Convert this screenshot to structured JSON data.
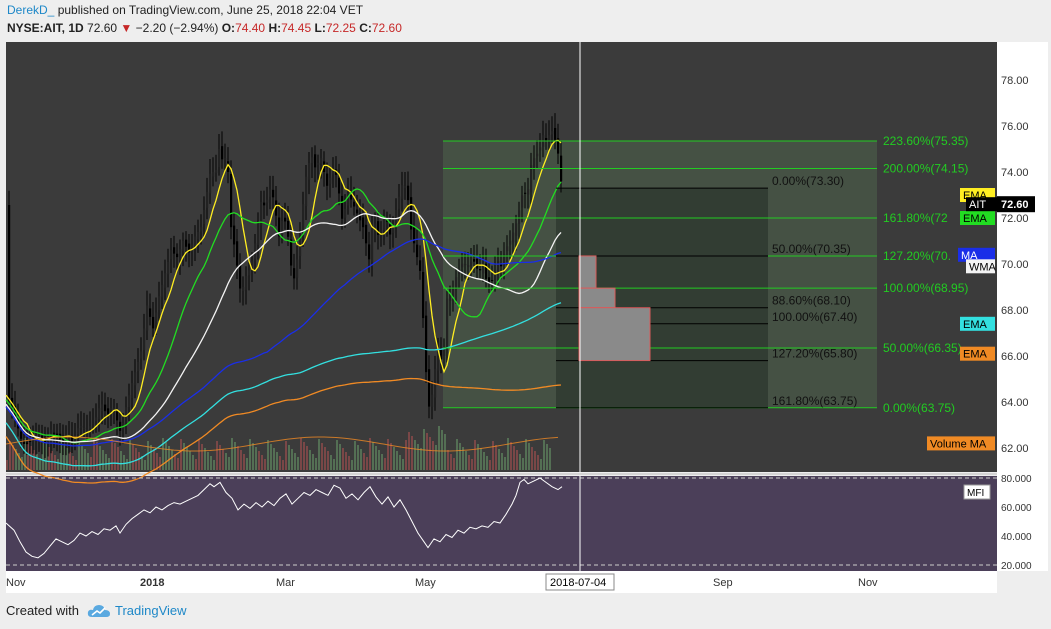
{
  "header": {
    "user": "DerekD_",
    "published": "published on TradingView.com, June 25, 2018 22:04 VET",
    "symbol": "NYSE:AIT, 1D",
    "last": "72.60",
    "change": "−2.20 (−2.94%)",
    "o_label": "O:",
    "o": "74.40",
    "h_label": "H:",
    "h": "74.45",
    "l_label": "L:",
    "l": "72.25",
    "c_label": "C:",
    "c": "72.60"
  },
  "footer": {
    "created": "Created with",
    "brand": "TradingView"
  },
  "colors": {
    "panel_bg": "#3b3b3b",
    "fib_zone": "#4a5a48",
    "green": "#22cc22",
    "ema_yellow": "#ffee22",
    "ema_green": "#22dd22",
    "ma_white": "#f4f4f4",
    "wma_blue": "#1a2ee8",
    "ema_cyan": "#33e0e0",
    "ema_orange": "#f08a24",
    "mfi_bg": "#4b3f59",
    "cursor": "#ffffff",
    "red_box": "#d95b5b"
  },
  "chart_data": {
    "type": "candlestick",
    "symbol": "NYSE:AIT",
    "interval": "1D",
    "y_axis": {
      "min": 61,
      "max": 79,
      "ticks": [
        "78.00",
        "76.00",
        "74.00",
        "72.00",
        "70.00",
        "68.00",
        "66.00",
        "64.00",
        "62.00"
      ]
    },
    "x_ticks": [
      "Nov",
      "2018",
      "Mar",
      "May",
      "2018-07-04",
      "Sep",
      "Nov"
    ],
    "last_price": {
      "label": "AIT",
      "value": 72.6,
      "text": "72.60"
    },
    "price_path": [
      [
        0,
        64.3
      ],
      [
        6,
        63.6
      ],
      [
        10,
        63.0
      ],
      [
        14,
        62.4
      ],
      [
        18,
        62.1
      ],
      [
        24,
        62.3
      ],
      [
        30,
        62.6
      ],
      [
        38,
        62.2
      ],
      [
        44,
        62.8
      ],
      [
        50,
        62.5
      ],
      [
        56,
        62.3
      ],
      [
        62,
        62.6
      ],
      [
        66,
        62.2
      ],
      [
        72,
        63.0
      ],
      [
        80,
        62.8
      ],
      [
        88,
        63.2
      ],
      [
        94,
        64.0
      ],
      [
        100,
        63.4
      ],
      [
        106,
        63.9
      ],
      [
        110,
        63.2
      ],
      [
        114,
        62.6
      ],
      [
        118,
        63.6
      ],
      [
        126,
        65.0
      ],
      [
        134,
        66.2
      ],
      [
        140,
        68.2
      ],
      [
        146,
        67.2
      ],
      [
        152,
        68.6
      ],
      [
        158,
        69.6
      ],
      [
        164,
        70.6
      ],
      [
        170,
        70.3
      ],
      [
        176,
        71.0
      ],
      [
        182,
        70.5
      ],
      [
        188,
        71.2
      ],
      [
        194,
        71.6
      ],
      [
        198,
        72.6
      ],
      [
        204,
        74.2
      ],
      [
        208,
        73.8
      ],
      [
        212,
        75.0
      ],
      [
        216,
        74.4
      ],
      [
        220,
        74.8
      ],
      [
        224,
        71.6
      ],
      [
        228,
        70.6
      ],
      [
        234,
        68.6
      ],
      [
        238,
        69.4
      ],
      [
        244,
        69.9
      ],
      [
        248,
        70.9
      ],
      [
        254,
        72.7
      ],
      [
        258,
        72.5
      ],
      [
        264,
        73.4
      ],
      [
        268,
        72.4
      ],
      [
        272,
        71.2
      ],
      [
        276,
        72.1
      ],
      [
        280,
        71.6
      ],
      [
        286,
        69.1
      ],
      [
        290,
        70.2
      ],
      [
        294,
        71.6
      ],
      [
        298,
        73.6
      ],
      [
        304,
        74.8
      ],
      [
        308,
        74.2
      ],
      [
        314,
        74.6
      ],
      [
        320,
        73.4
      ],
      [
        326,
        74.1
      ],
      [
        330,
        73.8
      ],
      [
        336,
        71.6
      ],
      [
        340,
        73.2
      ],
      [
        346,
        72.6
      ],
      [
        350,
        72.2
      ],
      [
        356,
        71.6
      ],
      [
        362,
        70.2
      ],
      [
        366,
        72.1
      ],
      [
        372,
        71.1
      ],
      [
        378,
        72.2
      ],
      [
        384,
        71.1
      ],
      [
        390,
        72.6
      ],
      [
        396,
        73.6
      ],
      [
        400,
        73.2
      ],
      [
        404,
        71.5
      ],
      [
        408,
        70.7
      ],
      [
        414,
        69.5
      ],
      [
        418,
        65.8
      ],
      [
        422,
        63.8
      ],
      [
        426,
        64.5
      ],
      [
        430,
        66.4
      ],
      [
        436,
        65.6
      ],
      [
        440,
        68.5
      ],
      [
        446,
        68.9
      ],
      [
        450,
        69.6
      ],
      [
        456,
        70.1
      ],
      [
        460,
        69.9
      ],
      [
        466,
        70.2
      ],
      [
        472,
        69.6
      ],
      [
        476,
        70.1
      ],
      [
        480,
        69.1
      ],
      [
        486,
        69.3
      ],
      [
        490,
        70.2
      ],
      [
        494,
        69.9
      ],
      [
        498,
        70.6
      ],
      [
        504,
        71.1
      ],
      [
        510,
        71.9
      ],
      [
        516,
        73.2
      ],
      [
        520,
        72.9
      ],
      [
        524,
        74.3
      ],
      [
        528,
        74.7
      ],
      [
        532,
        74.9
      ],
      [
        536,
        75.6
      ],
      [
        540,
        75.3
      ],
      [
        544,
        75.9
      ],
      [
        548,
        75.4
      ],
      [
        552,
        74.6
      ],
      [
        556,
        72.6
      ]
    ],
    "overlays": [
      {
        "name": "EMA",
        "color": "#ffee22",
        "label_value": 73.0
      },
      {
        "name": "EMA",
        "color": "#22dd22",
        "label_value": 72.0
      },
      {
        "name": "MA",
        "color": "#f4f4f4",
        "label_value": 70.0
      },
      {
        "name": "WMA",
        "color": "#1a2ee8",
        "label_value": 70.4
      },
      {
        "name": "EMA",
        "color": "#33e0e0",
        "label_value": 67.4
      },
      {
        "name": "EMA",
        "color": "#f08a24",
        "label_value": 66.1
      },
      {
        "name": "Volume MA",
        "color": "#f08a24",
        "label_value": 62.2
      }
    ],
    "fib_extension_left": [
      {
        "text": "223.60%(75.35)",
        "value": 75.35
      },
      {
        "text": "200.00%(74.15)",
        "value": 74.15
      },
      {
        "text": "161.80%(72",
        "value": 72.0
      },
      {
        "text": "127.20%(70.",
        "value": 70.35
      },
      {
        "text": "100.00%(68.95)",
        "value": 68.95
      },
      {
        "text": "50.00%(66.35)",
        "value": 66.35
      },
      {
        "text": "0.00%(63.75)",
        "value": 63.75
      }
    ],
    "fib_retracement_right": [
      {
        "text": "0.00%(73.30)",
        "value": 73.3
      },
      {
        "text": "50.00%(70.35)",
        "value": 70.35
      },
      {
        "text": "88.60%(68.10)",
        "value": 68.1
      },
      {
        "text": "100.00%(67.40)",
        "value": 67.4
      },
      {
        "text": "127.20%(65.80)",
        "value": 65.8
      },
      {
        "text": "161.80%(63.75)",
        "value": 63.75
      }
    ],
    "mfi": {
      "name": "MFI",
      "y_ticks": [
        "80.000",
        "60.000",
        "40.000",
        "20.000"
      ],
      "ylim": [
        15,
        85
      ],
      "bands": [
        80,
        20
      ],
      "path": [
        [
          0,
          49
        ],
        [
          8,
          44
        ],
        [
          14,
          36
        ],
        [
          20,
          29
        ],
        [
          26,
          26
        ],
        [
          32,
          25
        ],
        [
          38,
          28
        ],
        [
          44,
          33
        ],
        [
          50,
          38
        ],
        [
          56,
          36
        ],
        [
          62,
          34
        ],
        [
          68,
          37
        ],
        [
          74,
          42
        ],
        [
          80,
          40
        ],
        [
          86,
          43
        ],
        [
          92,
          41
        ],
        [
          98,
          45
        ],
        [
          104,
          44
        ],
        [
          110,
          47
        ],
        [
          114,
          42
        ],
        [
          120,
          48
        ],
        [
          126,
          52
        ],
        [
          132,
          55
        ],
        [
          138,
          58
        ],
        [
          144,
          56
        ],
        [
          150,
          60
        ],
        [
          156,
          58
        ],
        [
          162,
          61
        ],
        [
          168,
          63
        ],
        [
          174,
          62
        ],
        [
          180,
          64
        ],
        [
          186,
          66
        ],
        [
          192,
          68
        ],
        [
          198,
          72
        ],
        [
          204,
          76
        ],
        [
          208,
          74
        ],
        [
          214,
          77
        ],
        [
          220,
          70
        ],
        [
          226,
          66
        ],
        [
          232,
          58
        ],
        [
          238,
          62
        ],
        [
          244,
          59
        ],
        [
          250,
          63
        ],
        [
          256,
          60
        ],
        [
          262,
          64
        ],
        [
          268,
          61
        ],
        [
          274,
          66
        ],
        [
          280,
          69
        ],
        [
          286,
          62
        ],
        [
          292,
          66
        ],
        [
          298,
          70
        ],
        [
          304,
          68
        ],
        [
          310,
          72
        ],
        [
          316,
          70
        ],
        [
          322,
          68
        ],
        [
          328,
          75
        ],
        [
          334,
          73
        ],
        [
          340,
          66
        ],
        [
          346,
          69
        ],
        [
          352,
          65
        ],
        [
          358,
          70
        ],
        [
          364,
          74
        ],
        [
          370,
          67
        ],
        [
          376,
          62
        ],
        [
          382,
          67
        ],
        [
          388,
          60
        ],
        [
          394,
          65
        ],
        [
          400,
          58
        ],
        [
          406,
          50
        ],
        [
          412,
          42
        ],
        [
          418,
          36
        ],
        [
          422,
          32
        ],
        [
          428,
          38
        ],
        [
          434,
          36
        ],
        [
          440,
          41
        ],
        [
          446,
          39
        ],
        [
          452,
          44
        ],
        [
          458,
          42
        ],
        [
          464,
          46
        ],
        [
          470,
          45
        ],
        [
          476,
          47
        ],
        [
          482,
          46
        ],
        [
          488,
          50
        ],
        [
          494,
          49
        ],
        [
          500,
          55
        ],
        [
          506,
          62
        ],
        [
          510,
          68
        ],
        [
          514,
          77
        ],
        [
          518,
          79
        ],
        [
          522,
          76
        ],
        [
          528,
          78
        ],
        [
          534,
          80
        ],
        [
          540,
          77
        ],
        [
          546,
          74
        ],
        [
          552,
          72
        ],
        [
          556,
          74
        ]
      ]
    },
    "cursor_date": "2018-07-04"
  }
}
